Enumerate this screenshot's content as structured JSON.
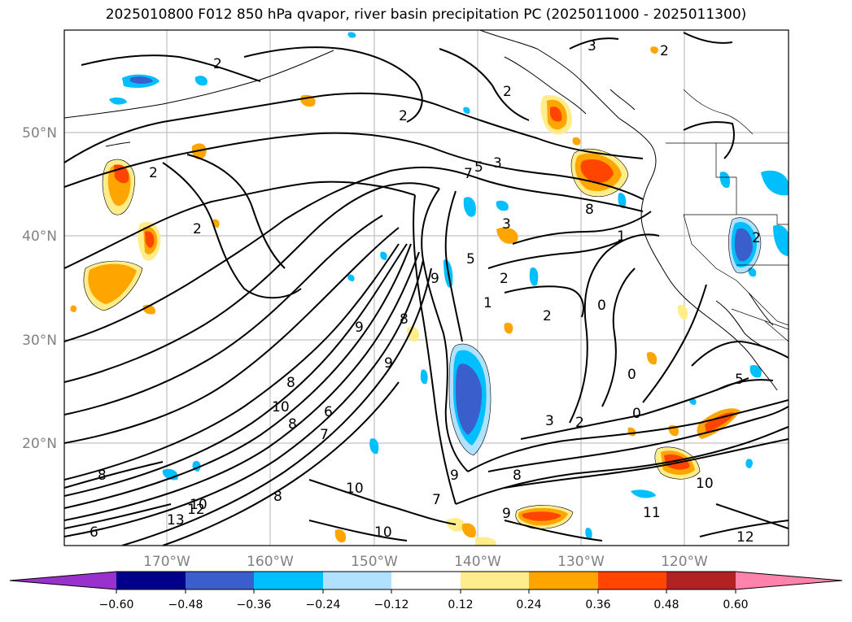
{
  "title": "2025010800 F012 850 hPa qvapor, river basin precipitation PC (2025011000 - 2025011300)",
  "lat_labels": [
    "50°N",
    "40°N",
    "30°N",
    "20°N"
  ],
  "lon_labels": [
    "170°W",
    "160°W",
    "150°W",
    "140°W",
    "130°W",
    "120°W"
  ],
  "colorbar": {
    "colors": [
      "#9932cc",
      "#00008b",
      "#3a5fcd",
      "#00bfff",
      "#b0e2ff",
      "#ffffff",
      "#ffec8b",
      "#ffa500",
      "#ff4500",
      "#b22222",
      "#ff82ab"
    ],
    "tick_labels": [
      "−0.60",
      "−0.48",
      "−0.36",
      "−0.24",
      "−0.12",
      "0.12",
      "0.24",
      "0.36",
      "0.48",
      "0.60"
    ]
  },
  "contour_labels": [
    "3",
    "2",
    "2",
    "2",
    "2",
    "2",
    "2",
    "3",
    "5",
    "7",
    "8",
    "3",
    "1",
    "2",
    "9",
    "5",
    "2",
    "1",
    "0",
    "8",
    "9",
    "8",
    "9",
    "10",
    "8",
    "6",
    "7",
    "3",
    "2",
    "0",
    "9",
    "8",
    "10",
    "7",
    "9",
    "10",
    "11",
    "12",
    "10",
    "12",
    "13",
    "10",
    "6",
    "8",
    "8",
    "5",
    "2",
    "0"
  ]
}
